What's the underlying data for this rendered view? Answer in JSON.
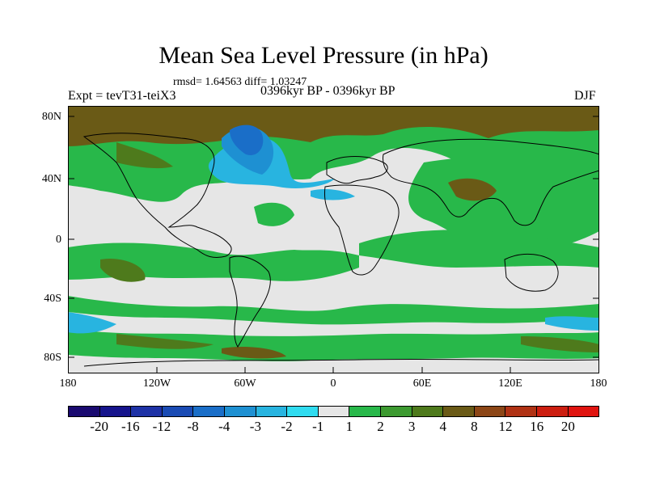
{
  "title": "Mean Sea Level Pressure (in hPa)",
  "stats": "rmsd= 1.64563 diff= 1.03247",
  "experiment": "Expt = tevT31-teiX3",
  "period": "0396kyr BP - 0396kyr BP",
  "season": "DJF",
  "lat_ticks": [
    "80N",
    "40N",
    "0",
    "40S",
    "80S"
  ],
  "lon_ticks": [
    "180",
    "120W",
    "60W",
    "0",
    "60E",
    "120E",
    "180"
  ],
  "colorbar": {
    "labels": [
      "-20",
      "-16",
      "-12",
      "-8",
      "-4",
      "-3",
      "-2",
      "-1",
      "1",
      "2",
      "3",
      "4",
      "8",
      "12",
      "16",
      "20"
    ],
    "colors": [
      "#1a0a70",
      "#16148c",
      "#1e32a6",
      "#1a4bb4",
      "#1a6ec8",
      "#1e90d2",
      "#28b4e0",
      "#30dcf0",
      "#e6e6e6",
      "#28b84a",
      "#3c9a30",
      "#4e7a1c",
      "#6a5a16",
      "#8c4616",
      "#b03214",
      "#cc1e10",
      "#e01410"
    ]
  }
}
